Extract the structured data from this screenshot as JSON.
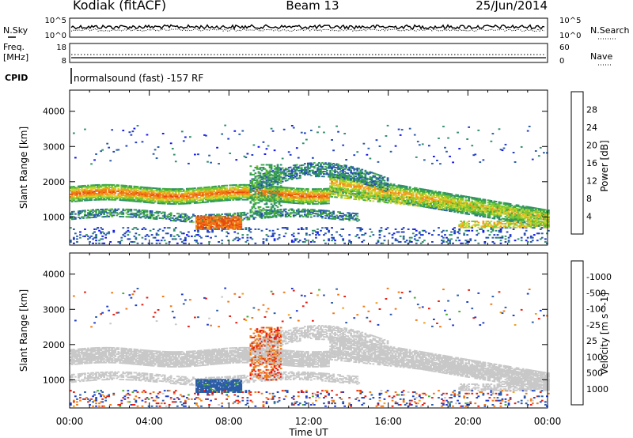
{
  "header": {
    "station": "Kodiak (fitACF)",
    "beam": "Beam 13",
    "date": "25/Jun/2014"
  },
  "noise_panel": {
    "left_label": "N.Sky",
    "right_label": "N.Search",
    "left_ticks": [
      "10^5",
      "10^0"
    ],
    "right_ticks": [
      "10^5",
      "10^0"
    ]
  },
  "freq_panel": {
    "left_label_1": "Freq.",
    "left_label_2": "[MHz]",
    "right_label": "Nave",
    "left_ticks": [
      "18",
      "8"
    ],
    "right_ticks": [
      "60",
      "0"
    ]
  },
  "cpid": {
    "label": "CPID",
    "text": "normalsound (fast) -157 RF"
  },
  "chart_data": [
    {
      "type": "heatmap",
      "name": "power-panel",
      "xlabel": "",
      "ylabel": "Slant Range [km]",
      "yticks": [
        "1000",
        "2000",
        "3000",
        "4000"
      ],
      "ylim": [
        200,
        4600
      ],
      "xlim": [
        "00:00",
        "24:00"
      ],
      "colorbar": {
        "label": "Power [dB]",
        "ticks": [
          "4",
          "8",
          "12",
          "16",
          "20",
          "24",
          "28"
        ],
        "colors": [
          "#1414f0",
          "#1e3cc8",
          "#2a5ca8",
          "#2f8f6a",
          "#3faa44",
          "#7cc832",
          "#d2d22a",
          "#f0a01e",
          "#f07814",
          "#e84a10",
          "#e61e10"
        ]
      },
      "features": [
        {
          "feature": "main backscatter band",
          "time_start_h": 0,
          "time_end_h": 12.5,
          "range_km": [
            1500,
            1800
          ],
          "power_db": 24
        },
        {
          "feature": "rising band",
          "time_start_h": 9.5,
          "time_end_h": 14.5,
          "range_km": [
            1800,
            2400
          ],
          "power_db": 8
        },
        {
          "feature": "descending band",
          "time_start_h": 13,
          "time_end_h": 24,
          "range_km": [
            800,
            2200
          ],
          "power_db": 20
        },
        {
          "feature": "near-range patch",
          "time_start_h": 6.5,
          "time_end_h": 8.5,
          "range_km": [
            650,
            950
          ],
          "power_db": 28
        }
      ]
    },
    {
      "type": "heatmap",
      "name": "velocity-panel",
      "xlabel": "Time UT",
      "ylabel": "Slant Range [km]",
      "xticks": [
        "00:00",
        "04:00",
        "08:00",
        "12:00",
        "16:00",
        "20:00",
        "00:00"
      ],
      "yticks": [
        "1000",
        "2000",
        "3000",
        "4000"
      ],
      "ylim": [
        200,
        4600
      ],
      "colorbar": {
        "label": "Velocity [m s^-1]",
        "ticks": [
          "1000",
          "500",
          "100",
          "25",
          "-25",
          "-100",
          "-500",
          "-1000"
        ],
        "colors": [
          "#1e3cc8",
          "#2a5ca8",
          "#2f8f6a",
          "#46aa32",
          "#78c83c",
          "#c8c8c8",
          "#c8c8c8",
          "#f0a01e",
          "#f07814",
          "#e84a10",
          "#e61e10"
        ]
      },
      "features": [
        {
          "feature": "ground scatter band",
          "time_start_h": 0,
          "time_end_h": 24,
          "range_km": [
            1400,
            2000
          ],
          "velocity_ms": 0
        },
        {
          "feature": "positive velocity patch",
          "time_start_h": 6.5,
          "time_end_h": 8.5,
          "range_km": [
            650,
            950
          ],
          "velocity_ms": 100
        },
        {
          "feature": "negative velocity streaks",
          "time_start_h": 9,
          "time_end_h": 10.5,
          "range_km": [
            1200,
            2400
          ],
          "velocity_ms": -500
        }
      ]
    }
  ]
}
